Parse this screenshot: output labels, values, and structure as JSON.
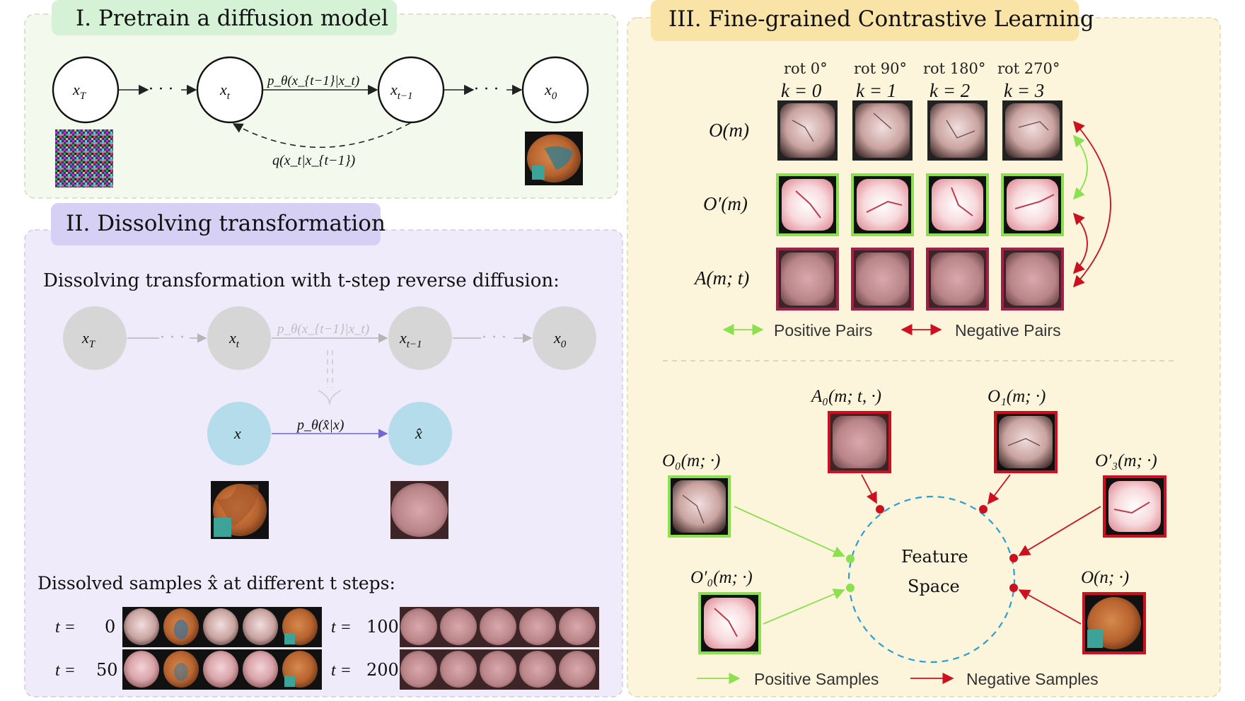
{
  "colors": {
    "panel1_bg": "#f3f9ec",
    "panel1_title_bg": "#d6f2d6",
    "panel2_bg": "#efebfb",
    "panel2_title_bg": "#d6d1f4",
    "panel3_bg": "#fdf4dc",
    "panel3_title_bg": "#fae3a6",
    "positive": "#8be04f",
    "negative": "#cc1020",
    "feature_circle": "#2a9fd6",
    "node_gray": "#d6d6d6",
    "node_blue": "#b5dcea"
  },
  "panel1": {
    "title": "I.   Pretrain a diffusion model",
    "nodes": [
      "x_T",
      "x_t",
      "x_{t−1}",
      "x_0"
    ],
    "nodes_main": [
      "x",
      "x",
      "x",
      "x"
    ],
    "nodes_sub": [
      "T",
      "t",
      "t−1",
      "0"
    ],
    "dots": "· · ·",
    "forward_label": "p_θ(x_{t−1}|x_t)",
    "reverse_label": "q(x_t|x_{t−1})",
    "images": [
      "noise-image",
      "endoscopy-image"
    ]
  },
  "panel2": {
    "title": "II. Dissolving transformation",
    "subtitle": "Dissolving transformation with t-step reverse diffusion:",
    "chain_nodes": [
      "x_T",
      "x_t",
      "x_{t−1}",
      "x_0"
    ],
    "chain_label": "p_θ(x_{t−1}|x_t)",
    "node_x": "x",
    "node_xhat": "x̂",
    "arrow_label": "p_θ(x̂|x)",
    "samples_title": "Dissolved samples x̂ at different t steps:",
    "rows": [
      {
        "label": "t =",
        "value": "0"
      },
      {
        "label": "t =",
        "value": "50"
      },
      {
        "label": "t =",
        "value": "100"
      },
      {
        "label": "t =",
        "value": "200"
      }
    ]
  },
  "panel3": {
    "title": "III. Fine-grained Contrastive Learning",
    "columns": [
      {
        "rot": "rot 0°",
        "k": "k = 0"
      },
      {
        "rot": "rot 90°",
        "k": "k = 1"
      },
      {
        "rot": "rot 180°",
        "k": "k = 2"
      },
      {
        "rot": "rot 270°",
        "k": "k = 3"
      }
    ],
    "rows": [
      "O(m)",
      "O′(m)",
      "A(m; t)"
    ],
    "legend_top": {
      "positive": "Positive Pairs",
      "negative": "Negative Pairs"
    },
    "feature_space": [
      "Feature",
      "Space"
    ],
    "samples": {
      "o0": "O₀(m; ·)",
      "o0p": "O′₀(m; ·)",
      "a0": "A₀(m; t, ·)",
      "o1": "O₁(m; ·)",
      "o3p": "O′₃(m; ·)",
      "on": "O(n; ·)"
    },
    "legend_bottom": {
      "positive": "Positive Samples",
      "negative": "Negative Samples"
    }
  }
}
